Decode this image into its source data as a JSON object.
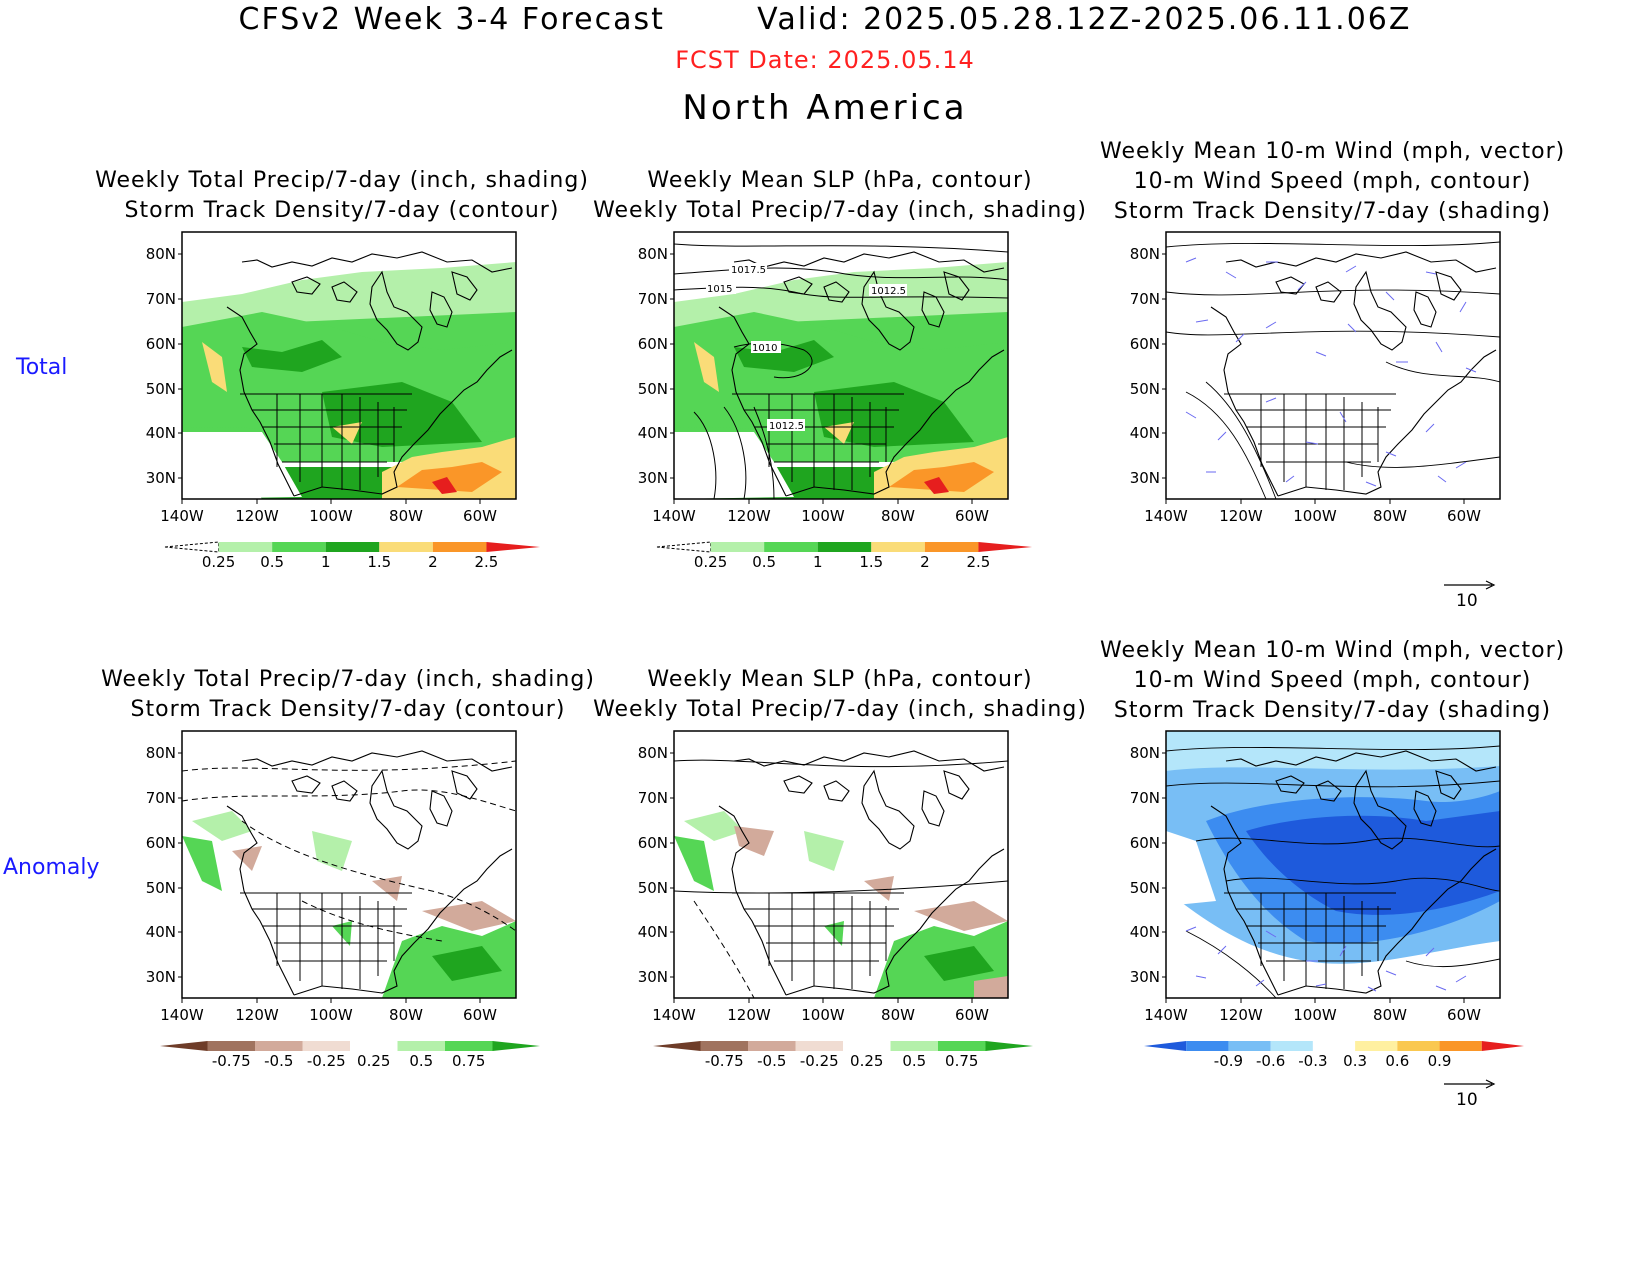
{
  "header": {
    "title_left": "CFSv2 Week 3-4 Forecast",
    "title_right": "Valid: 2025.05.28.12Z-2025.06.11.06Z",
    "fcst_date": "FCST Date: 2025.05.14",
    "region": "North America"
  },
  "rows": [
    {
      "label": "Total"
    },
    {
      "label": "Anomaly"
    }
  ],
  "titles": {
    "col1": "Weekly Total Precip/7-day (inch, shading)\nStorm Track Density/7-day (contour)",
    "col2": "Weekly Mean SLP (hPa, contour)\nWeekly Total Precip/7-day (inch, shading)",
    "col3": "Weekly Mean 10-m Wind (mph, vector)\n10-m Wind Speed (mph, contour)\nStorm Track Density/7-day (shading)"
  },
  "axes": {
    "lat_labels": [
      "80N",
      "70N",
      "60N",
      "50N",
      "40N",
      "30N"
    ],
    "lon_labels": [
      "140W",
      "120W",
      "100W",
      "80W",
      "60W"
    ]
  },
  "slp_labels": [
    "1017.5",
    "1015",
    "1012.5",
    "1010",
    "1012.5"
  ],
  "colorbars": {
    "precip_total": {
      "labels": [
        "0.25",
        "0.5",
        "1",
        "1.5",
        "2",
        "2.5"
      ],
      "colors": [
        "#ffffff",
        "#b4f0aa",
        "#55d655",
        "#1fa51f",
        "#fadc78",
        "#fa9628",
        "#e61e1e"
      ]
    },
    "precip_anom": {
      "labels": [
        "-0.75",
        "-0.5",
        "-0.25",
        "0.25",
        "0.5",
        "0.75"
      ],
      "colors": [
        "#6e3c28",
        "#a0735f",
        "#d2aa9b",
        "#f0dcd2",
        "#ffffff",
        "#b4f0aa",
        "#55d655",
        "#1fa51f"
      ]
    },
    "track_anom": {
      "labels": [
        "-0.9",
        "-0.6",
        "-0.3",
        "0.3",
        "0.6",
        "0.9"
      ],
      "colors": [
        "#1e5adc",
        "#3c8cf0",
        "#78bef5",
        "#b4e6fa",
        "#ffffff",
        "#fff0a0",
        "#fac850",
        "#fa9628",
        "#e61e1e"
      ]
    }
  },
  "wind_reference": {
    "value": "10"
  }
}
